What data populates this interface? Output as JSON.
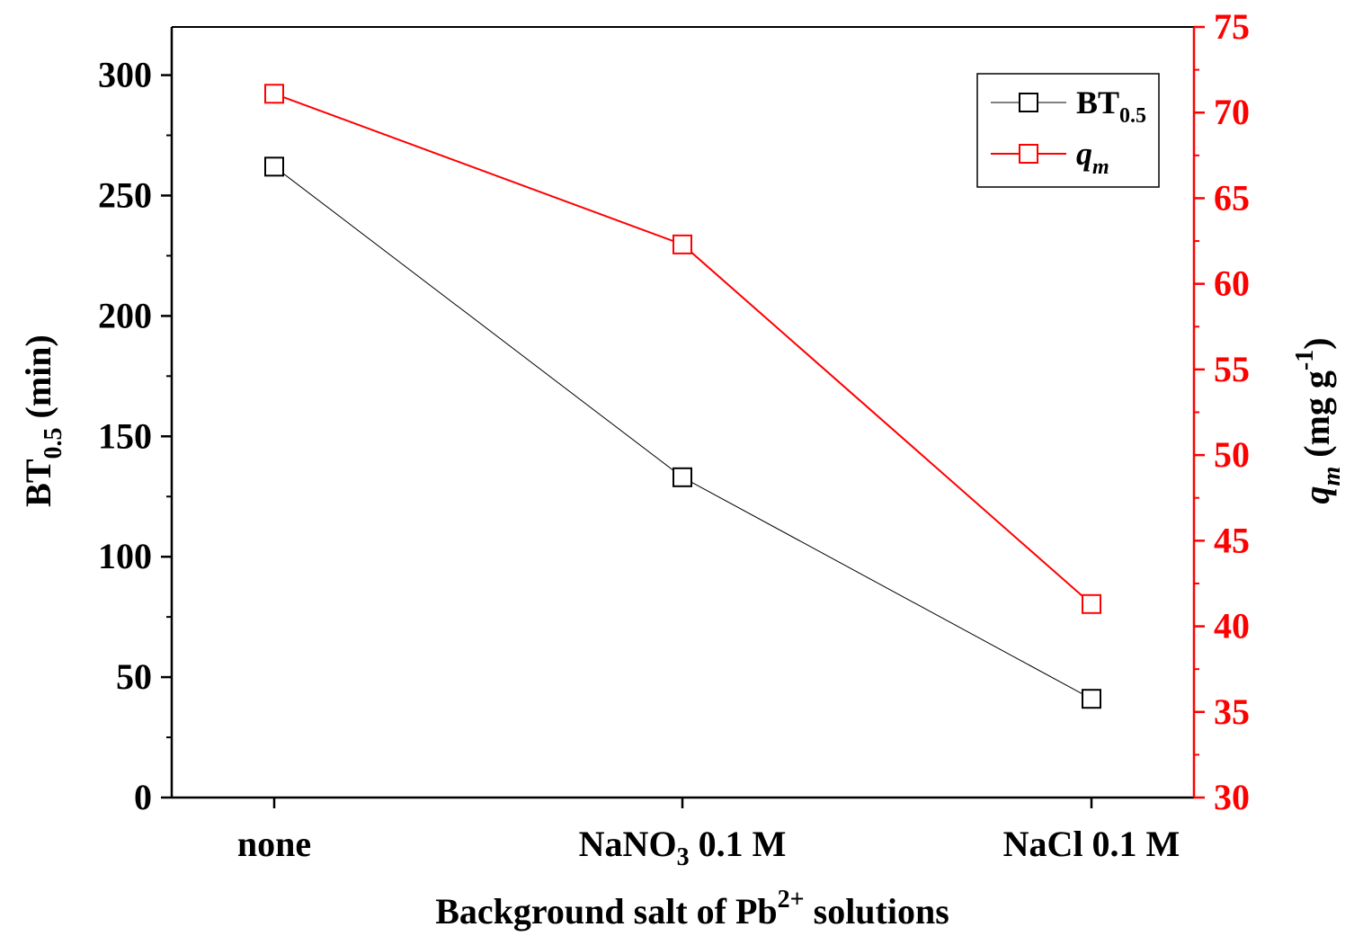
{
  "colors": {
    "series1": "#000000",
    "series2": "#ff0000"
  },
  "chart_data": {
    "type": "line",
    "categories": [
      "none",
      "NaNO3 0.1 M",
      "NaCl 0.1 M"
    ],
    "category_parts": [
      {
        "base": "none",
        "sub": "",
        "rest": ""
      },
      {
        "base": "NaNO",
        "sub": "3",
        "rest": " 0.1 M"
      },
      {
        "base": "NaCl 0.1 M",
        "sub": "",
        "rest": ""
      }
    ],
    "series": [
      {
        "name": "BT0.5",
        "axis": "left",
        "values": [
          262,
          133,
          41
        ]
      },
      {
        "name": "qm",
        "axis": "right",
        "values": [
          71.1,
          62.3,
          41.3
        ]
      }
    ],
    "xlabel": {
      "base": "Background salt of Pb",
      "sup": "2+",
      "rest": " solutions"
    },
    "ylabel_left": {
      "base": "BT",
      "sub": "0.5",
      "rest": " (min)"
    },
    "ylabel_right": {
      "italic": "q",
      "sub": "m",
      "rest": " (mg g",
      "sup": "-1",
      "end": ")"
    },
    "ylim_left": [
      0,
      320
    ],
    "ylim_right": [
      30,
      75
    ],
    "yticks_left": [
      "0",
      "50",
      "100",
      "150",
      "200",
      "250",
      "300"
    ],
    "yticks_right": [
      "30",
      "35",
      "40",
      "45",
      "50",
      "55",
      "60",
      "65",
      "70",
      "75"
    ],
    "legend": {
      "placement": "top-right",
      "items": [
        {
          "base": "BT",
          "sub": "0.5",
          "italic": false
        },
        {
          "base": "q",
          "sub": "m",
          "italic": true
        }
      ]
    },
    "grid": false
  }
}
